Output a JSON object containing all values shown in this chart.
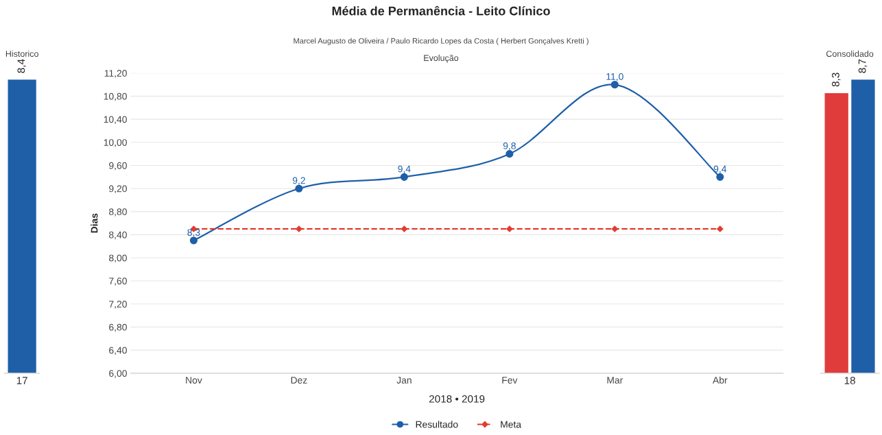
{
  "chart_data": [
    {
      "type": "bar",
      "title": "Historico",
      "categories": [
        "17"
      ],
      "series": [
        {
          "color": "#1f5fa8",
          "values": [
            8.4
          ],
          "value_labels": [
            "8,4"
          ]
        }
      ],
      "tick_labels": "x",
      "grid": false
    },
    {
      "type": "line",
      "title": "Média de Permanência - Leito Clínico",
      "subtitle": "Marcel Augusto de Oliveira / Paulo Ricardo Lopes da Costa ( Herbert Gonçalves Kretti )",
      "annotations": [
        "Evolução"
      ],
      "xlabel": "2018 • 2019",
      "ylabel": "Dias",
      "categories": [
        "Nov",
        "Dez",
        "Jan",
        "Fev",
        "Mar",
        "Abr"
      ],
      "series": [
        {
          "name": "Resultado",
          "color": "#1f5fa8",
          "values": [
            8.3,
            9.2,
            9.4,
            9.8,
            11.0,
            9.4
          ],
          "marker": "circle",
          "line_style": "solid",
          "value_labels": [
            "8,3",
            "9,2",
            "9,4",
            "9,8",
            "11,0",
            "9,4"
          ]
        },
        {
          "name": "Meta",
          "color": "#e03c31",
          "values": [
            8.5,
            8.5,
            8.5,
            8.5,
            8.5,
            8.5
          ],
          "marker": "diamond",
          "line_style": "dashed"
        }
      ],
      "ylim": [
        6.0,
        11.2
      ],
      "yticks": [
        {
          "value": 6.0,
          "label": "6,00"
        },
        {
          "value": 6.4,
          "label": "6,40"
        },
        {
          "value": 6.8,
          "label": "6,80"
        },
        {
          "value": 7.2,
          "label": "7,20"
        },
        {
          "value": 7.6,
          "label": "7,60"
        },
        {
          "value": 8.0,
          "label": "8,00"
        },
        {
          "value": 8.4,
          "label": "8,40"
        },
        {
          "value": 8.8,
          "label": "8,80"
        },
        {
          "value": 9.2,
          "label": "9,20"
        },
        {
          "value": 9.6,
          "label": "9,60"
        },
        {
          "value": 10.0,
          "label": "10,00"
        },
        {
          "value": 10.4,
          "label": "10,40"
        },
        {
          "value": 10.8,
          "label": "10,80"
        },
        {
          "value": 11.2,
          "label": "11,20"
        }
      ],
      "grid": "y",
      "legend": "bottom"
    },
    {
      "type": "bar",
      "title": "Consolidado",
      "categories": [
        "18"
      ],
      "series": [
        {
          "color": "#e03c3c",
          "values": [
            8.3
          ],
          "value_labels": [
            "8,3"
          ]
        },
        {
          "color": "#1f5fa8",
          "values": [
            8.7
          ],
          "value_labels": [
            "8,7"
          ]
        }
      ],
      "tick_labels": "x",
      "grid": false
    }
  ]
}
